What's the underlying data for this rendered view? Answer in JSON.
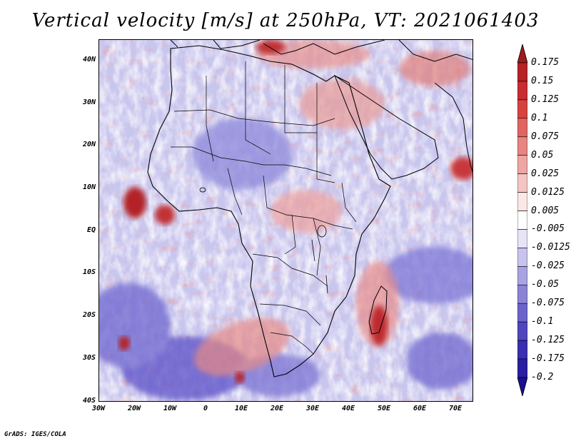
{
  "title": "Vertical velocity [m/s] at 250hPa, VT: 2021061403",
  "credit": "GrADS: IGES/COLA",
  "map": {
    "type": "filled-contour-map",
    "region": "Africa",
    "variable": "vertical velocity",
    "level": "250hPa",
    "units": "m/s",
    "valid_time": "2021061403",
    "lon_range": [
      -30,
      75
    ],
    "lat_range": [
      -40,
      45
    ],
    "lat_labels": [
      "40N",
      "30N",
      "20N",
      "10N",
      "EQ",
      "10S",
      "20S",
      "30S",
      "40S"
    ],
    "lon_labels": [
      "30W",
      "20W",
      "10W",
      "0",
      "10E",
      "20E",
      "30E",
      "40E",
      "50E",
      "60E",
      "70E"
    ],
    "positive_color": "#c0272d",
    "negative_color": "#3a2fb8"
  },
  "colorbar": {
    "labels": [
      "0.175",
      "0.15",
      "0.125",
      "0.1",
      "0.075",
      "0.05",
      "0.025",
      "0.0125",
      "0.005",
      "-0.005",
      "-0.0125",
      "-0.025",
      "-0.05",
      "-0.075",
      "-0.1",
      "-0.125",
      "-0.175",
      "-0.2"
    ],
    "colors": [
      "#a01a1e",
      "#b52227",
      "#c72d31",
      "#d6433f",
      "#e06560",
      "#e88580",
      "#eea6a2",
      "#f4c6c3",
      "#fbe8e6",
      "#ffffff",
      "#e6e4f6",
      "#c7c3ec",
      "#a9a3e1",
      "#8b84d6",
      "#6c64ca",
      "#5046bd",
      "#3a2fb0",
      "#2a1fa0",
      "#1b1090"
    ]
  }
}
